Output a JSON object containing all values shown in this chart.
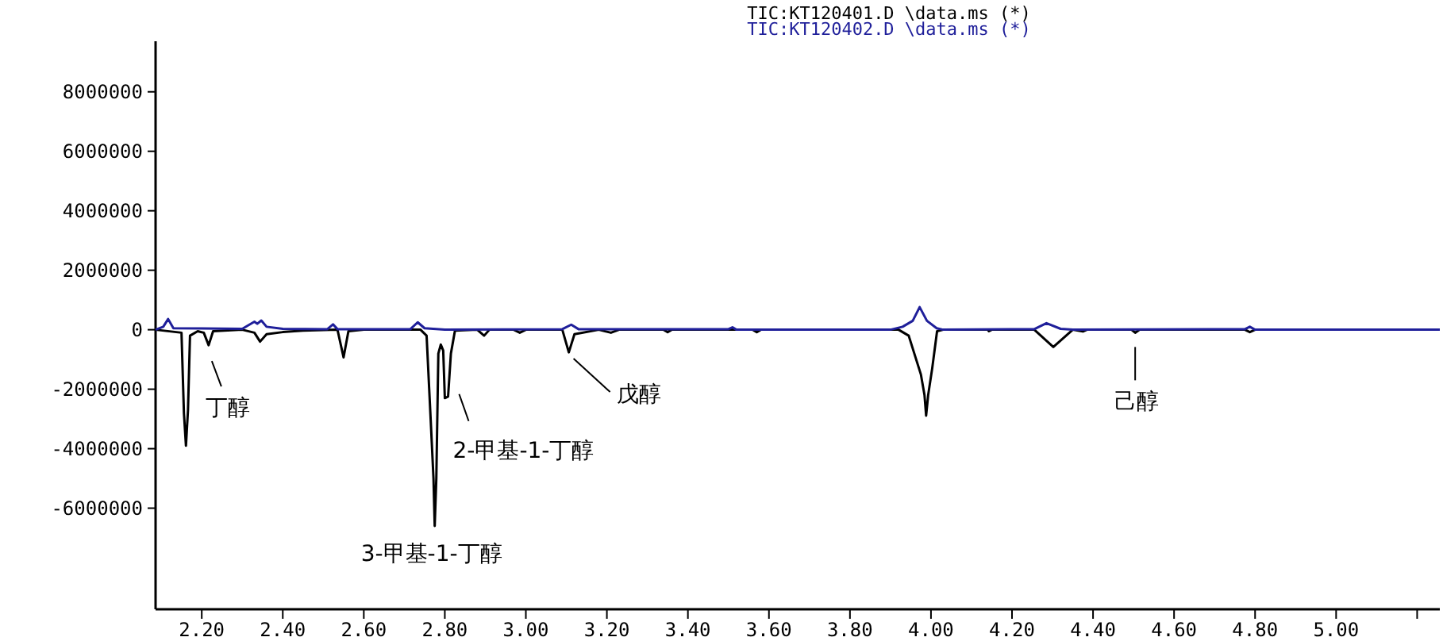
{
  "chart_data": {
    "type": "line",
    "xlim": [
      2.086,
      5.256
    ],
    "ylim": [
      -9400000,
      9700000
    ],
    "xticks": [
      {
        "value": 2.2,
        "label": "2.20"
      },
      {
        "value": 2.4,
        "label": "2.40"
      },
      {
        "value": 2.6,
        "label": "2.60"
      },
      {
        "value": 2.8,
        "label": "2.80"
      },
      {
        "value": 3.0,
        "label": "3.00"
      },
      {
        "value": 3.2,
        "label": "3.20"
      },
      {
        "value": 3.4,
        "label": "3.40"
      },
      {
        "value": 3.6,
        "label": "3.60"
      },
      {
        "value": 3.8,
        "label": "3.80"
      },
      {
        "value": 4.0,
        "label": "4.00"
      },
      {
        "value": 4.2,
        "label": "4.20"
      },
      {
        "value": 4.4,
        "label": "4.40"
      },
      {
        "value": 4.6,
        "label": "4.60"
      },
      {
        "value": 4.8,
        "label": "4.80"
      },
      {
        "value": 5.0,
        "label": "5.00"
      },
      {
        "value": 5.2,
        "label": null
      }
    ],
    "yticks": [
      -6000000,
      -4000000,
      -2000000,
      0,
      2000000,
      4000000,
      6000000,
      8000000
    ],
    "legend": "top",
    "series": [
      {
        "name": "TIC:KT120401.D \\data.ms (*)",
        "color": "#000000",
        "x": [
          2.086,
          2.15,
          2.156,
          2.161,
          2.166,
          2.171,
          2.19,
          2.205,
          2.217,
          2.228,
          2.3,
          2.33,
          2.344,
          2.36,
          2.4,
          2.45,
          2.535,
          2.55,
          2.562,
          2.6,
          2.74,
          2.755,
          2.765,
          2.772,
          2.775,
          2.779,
          2.784,
          2.79,
          2.796,
          2.8,
          2.808,
          2.815,
          2.825,
          2.88,
          2.897,
          2.91,
          2.97,
          2.985,
          3.0,
          3.09,
          3.106,
          3.12,
          3.18,
          3.21,
          3.23,
          3.34,
          3.35,
          3.36,
          3.56,
          3.57,
          3.58,
          3.92,
          3.945,
          3.975,
          3.984,
          3.988,
          3.993,
          4.003,
          4.015,
          4.03,
          4.14,
          4.143,
          4.15,
          4.255,
          4.302,
          4.35,
          4.375,
          4.385,
          4.495,
          4.504,
          4.515,
          4.775,
          4.787,
          4.8,
          5.256
        ],
        "values": [
          0,
          -100000,
          -2800000,
          -3900000,
          -2700000,
          -200000,
          -50000,
          -100000,
          -520000,
          -50000,
          0,
          -100000,
          -400000,
          -150000,
          -80000,
          -30000,
          0,
          -930000,
          -50000,
          0,
          0,
          -200000,
          -3000000,
          -5000000,
          -6600000,
          -5000000,
          -800000,
          -500000,
          -700000,
          -2300000,
          -2250000,
          -800000,
          -30000,
          0,
          -200000,
          0,
          0,
          -100000,
          0,
          0,
          -760000,
          -150000,
          0,
          -100000,
          0,
          0,
          -80000,
          0,
          0,
          -80000,
          0,
          0,
          -200000,
          -1500000,
          -2200000,
          -2890000,
          -2200000,
          -1300000,
          -50000,
          0,
          0,
          -50000,
          0,
          0,
          -580000,
          0,
          -60000,
          0,
          0,
          -100000,
          0,
          0,
          -80000,
          0,
          0
        ]
      },
      {
        "name": "TIC:KT120402.D \\data.ms (*)",
        "color": "#1f1f9a",
        "x": [
          2.086,
          2.105,
          2.117,
          2.13,
          2.3,
          2.33,
          2.337,
          2.347,
          2.36,
          2.4,
          2.51,
          2.524,
          2.535,
          2.715,
          2.733,
          2.75,
          2.8,
          3.09,
          3.112,
          3.13,
          3.5,
          3.51,
          3.52,
          3.9,
          3.93,
          3.955,
          3.972,
          3.99,
          4.014,
          4.03,
          4.255,
          4.285,
          4.32,
          4.35,
          4.775,
          4.787,
          4.8,
          5.256
        ],
        "values": [
          0,
          100000,
          360000,
          50000,
          30000,
          270000,
          200000,
          310000,
          100000,
          30000,
          20000,
          180000,
          20000,
          20000,
          250000,
          50000,
          0,
          20000,
          170000,
          20000,
          20000,
          80000,
          0,
          0,
          100000,
          300000,
          760000,
          300000,
          50000,
          0,
          20000,
          220000,
          30000,
          0,
          20000,
          100000,
          0,
          0
        ]
      }
    ],
    "annotations": [
      {
        "text": "丁醇",
        "x": 2.217,
        "y": -520000
      },
      {
        "text": "3-甲基-1-丁醇",
        "x": 2.775,
        "y": -6600000
      },
      {
        "text": "2-甲基-1-丁醇",
        "x": 2.804,
        "y": -2270000
      },
      {
        "text": "戊醇",
        "x": 3.106,
        "y": -760000
      },
      {
        "text": "己醇",
        "x": 4.504,
        "y": -100000
      }
    ]
  }
}
